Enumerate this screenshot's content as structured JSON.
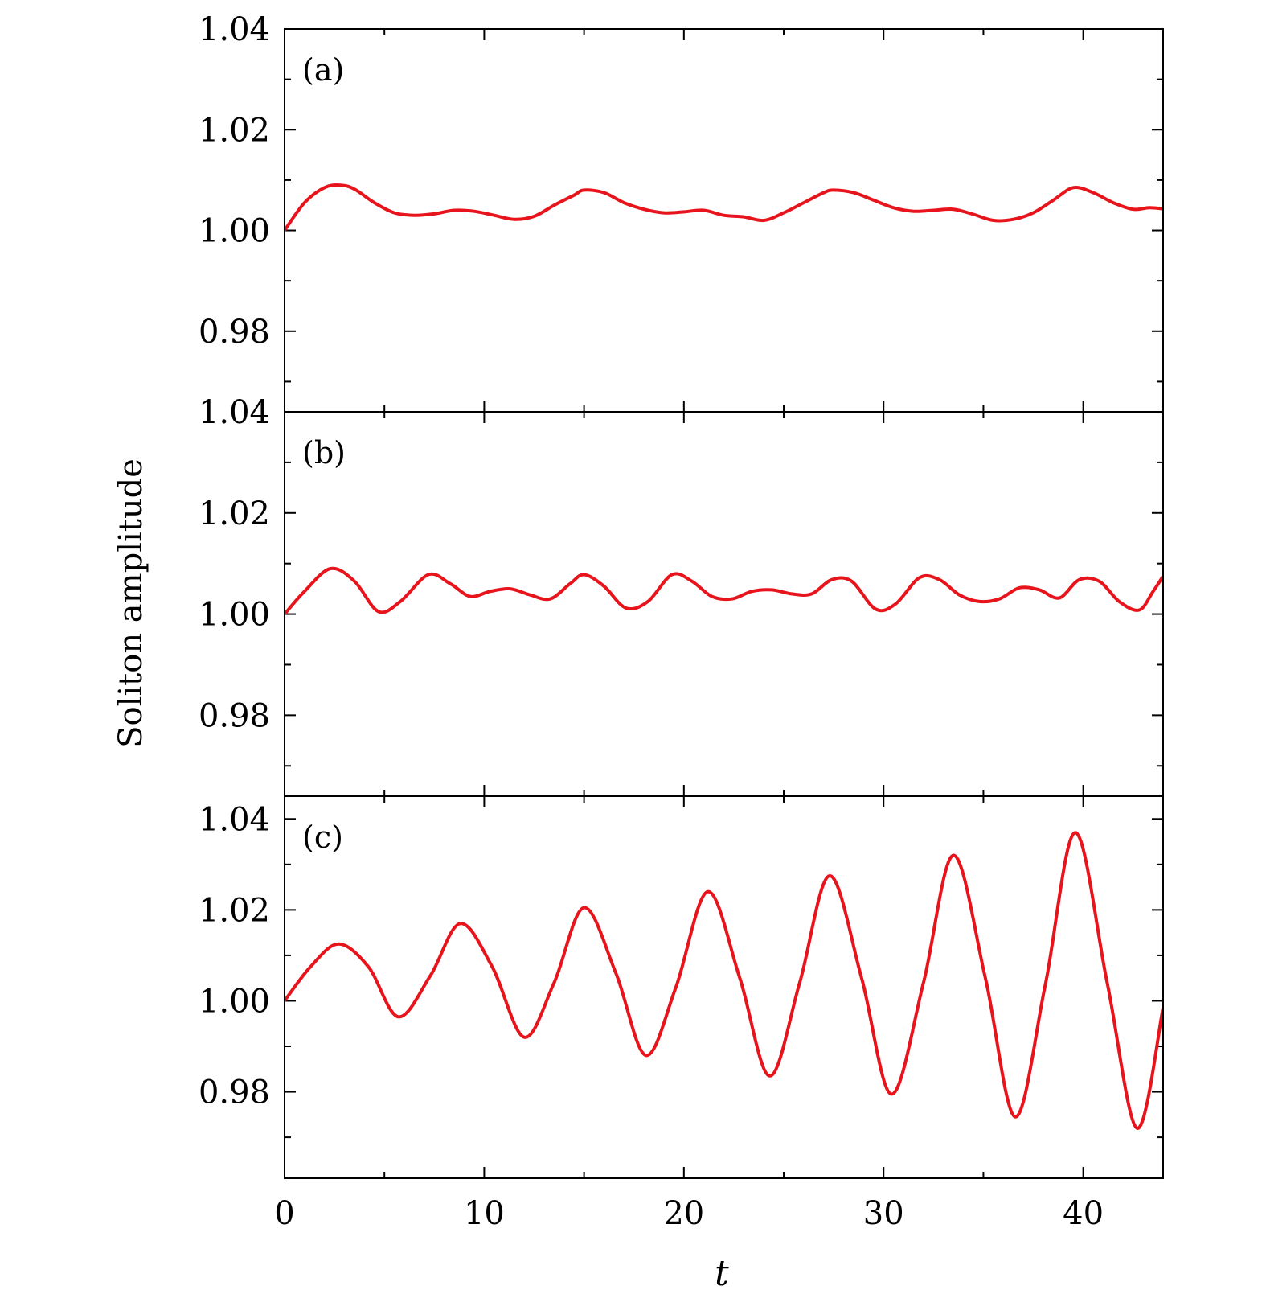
{
  "chart_data": {
    "type": "line",
    "ylabel": "Soliton amplitude",
    "xlabel": "t",
    "xlim": [
      0,
      44
    ],
    "x_ticks": [
      0,
      10,
      20,
      30,
      40
    ],
    "x_tick_labels": [
      "0",
      "10",
      "20",
      "30",
      "40"
    ],
    "x_minor_ticks": [
      5,
      15,
      25,
      35
    ],
    "line_color": "#e8141c",
    "panels": [
      {
        "label": "(a)",
        "ylim": [
          0.964,
          1.04
        ],
        "y_ticks": [
          0.98,
          1.0,
          1.02,
          1.04
        ],
        "y_tick_labels": [
          "0.98",
          "1.00",
          "1.02",
          "1.04"
        ],
        "y_minor_ticks": [
          0.97,
          0.99,
          1.01,
          1.03
        ],
        "series": [
          {
            "x": [
              0,
              1,
              2,
              2.8,
              3.5,
              4.5,
              5.5,
              6.5,
              7.5,
              8.5,
              9.5,
              10.5,
              11.5,
              12.5,
              13.5,
              14.5,
              15,
              16,
              17,
              18,
              19,
              20,
              21,
              22,
              23,
              24,
              25,
              26,
              27,
              27.5,
              28.5,
              29.5,
              30.5,
              31.5,
              32.5,
              33.5,
              34.5,
              35.5,
              36.5,
              37.5,
              38.5,
              39.5,
              40.5,
              41.5,
              42.5,
              43.3,
              44
            ],
            "y": [
              1.0,
              1.0055,
              1.0085,
              1.009,
              1.0082,
              1.0055,
              1.0035,
              1.003,
              1.0033,
              1.004,
              1.0038,
              1.003,
              1.0022,
              1.0028,
              1.005,
              1.007,
              1.008,
              1.0075,
              1.0055,
              1.0042,
              1.0035,
              1.0037,
              1.004,
              1.003,
              1.0027,
              1.002,
              1.0035,
              1.0055,
              1.0075,
              1.008,
              1.0075,
              1.006,
              1.0045,
              1.0038,
              1.004,
              1.0042,
              1.0032,
              1.002,
              1.0022,
              1.0035,
              1.006,
              1.0085,
              1.0075,
              1.0055,
              1.0042,
              1.0045,
              1.0043
            ]
          }
        ]
      },
      {
        "label": "(b)",
        "ylim": [
          0.964,
          1.04
        ],
        "y_ticks": [
          0.98,
          1.0,
          1.02,
          1.04
        ],
        "y_tick_labels": [
          "0.98",
          "1.00",
          "1.02",
          "1.04"
        ],
        "y_minor_ticks": [
          0.97,
          0.99,
          1.01,
          1.03
        ],
        "series": [
          {
            "x": [
              0,
              1,
              2.3,
              3.5,
              4.7,
              5.8,
              7.2,
              8.3,
              9.3,
              10.3,
              11.3,
              12.3,
              13.3,
              14.3,
              15,
              16,
              17.1,
              18.2,
              19.4,
              20.4,
              21.4,
              22.4,
              23.4,
              24.4,
              25.4,
              26.4,
              27.4,
              28.4,
              29.6,
              30.6,
              31.8,
              32.8,
              33.8,
              34.8,
              35.8,
              36.8,
              37.8,
              38.8,
              39.8,
              40.8,
              41.8,
              42.8,
              43.5,
              44
            ],
            "y": [
              1.0,
              1.0045,
              1.009,
              1.0065,
              1.0005,
              1.0025,
              1.0078,
              1.006,
              1.0035,
              1.0045,
              1.005,
              1.0038,
              1.003,
              1.006,
              1.0078,
              1.0055,
              1.0012,
              1.0025,
              1.0078,
              1.0065,
              1.0035,
              1.003,
              1.0045,
              1.0048,
              1.004,
              1.004,
              1.0068,
              1.0065,
              1.001,
              1.002,
              1.0072,
              1.0068,
              1.0038,
              1.0025,
              1.003,
              1.0052,
              1.0048,
              1.0032,
              1.0068,
              1.0065,
              1.0025,
              1.0008,
              1.0045,
              1.0075
            ]
          }
        ]
      },
      {
        "label": "(c)",
        "ylim": [
          0.961,
          1.045
        ],
        "y_ticks": [
          0.98,
          1.0,
          1.02,
          1.04
        ],
        "y_tick_labels": [
          "0.98",
          "1.00",
          "1.02",
          "1.04"
        ],
        "y_minor_ticks": [
          0.97,
          0.99,
          1.01,
          1.03
        ],
        "series": [
          {
            "x": [
              0,
              1.3,
              2.7,
              4.2,
              5.7,
              7.3,
              8.8,
              10.4,
              12.0,
              13.5,
              15.0,
              16.6,
              18.1,
              19.6,
              21.2,
              22.8,
              24.3,
              25.8,
              27.3,
              28.9,
              30.4,
              32.0,
              33.5,
              35.1,
              36.6,
              38.1,
              39.6,
              41.2,
              42.7,
              44.0
            ],
            "y": [
              1.0,
              1.0075,
              1.0125,
              1.0075,
              0.9965,
              1.0055,
              1.017,
              1.0075,
              0.992,
              1.004,
              1.0205,
              1.006,
              0.988,
              1.003,
              1.024,
              1.005,
              0.9835,
              1.004,
              1.0275,
              1.005,
              0.9795,
              1.004,
              1.032,
              1.005,
              0.9745,
              1.0035,
              1.037,
              1.004,
              0.972,
              0.9985
            ]
          }
        ]
      }
    ]
  }
}
